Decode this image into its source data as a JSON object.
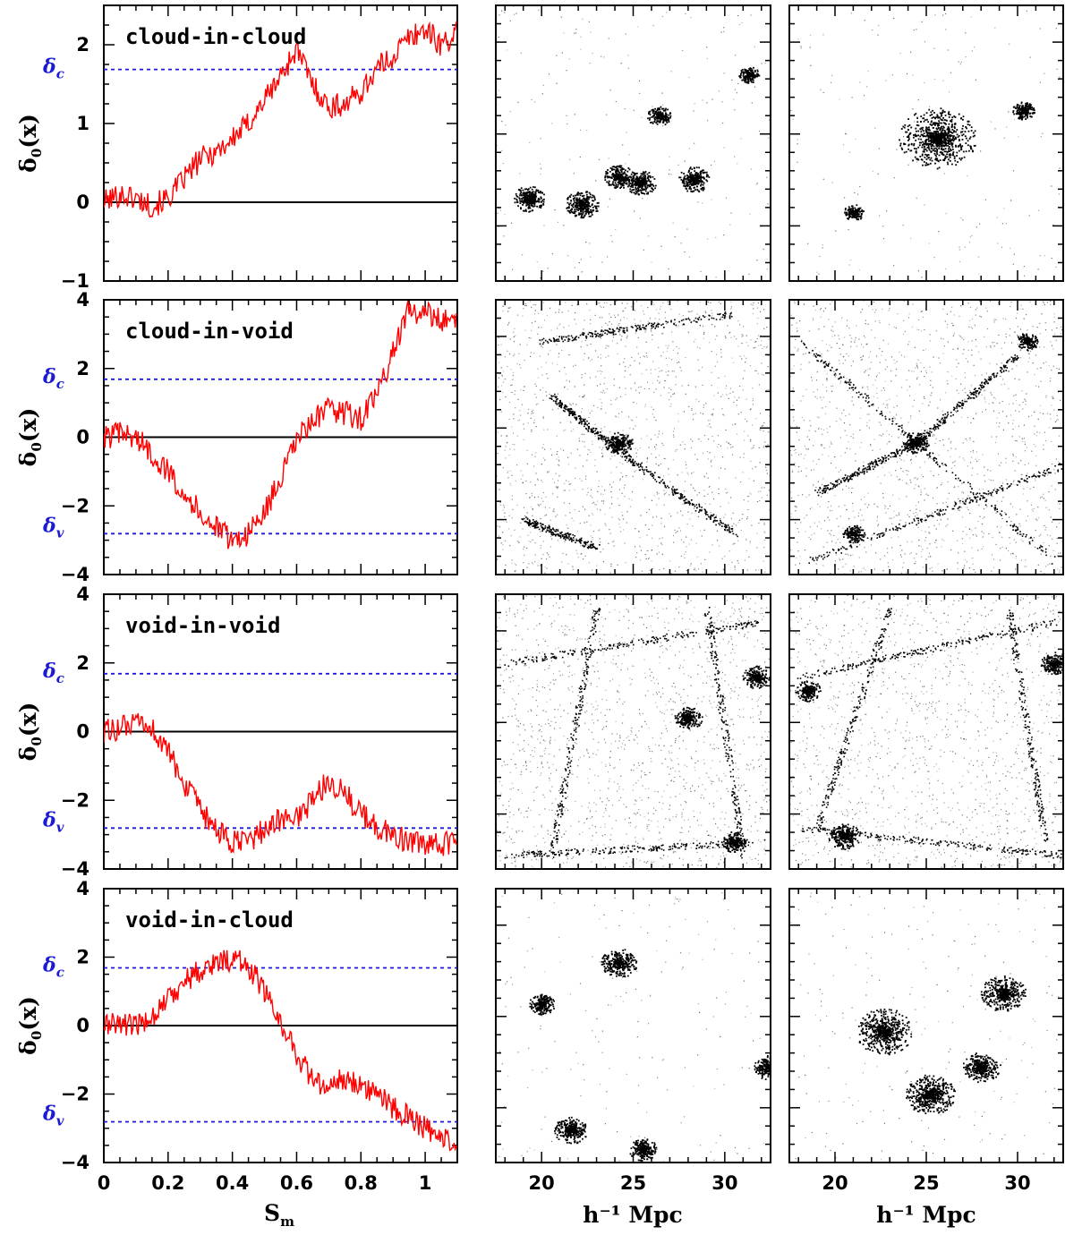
{
  "chart_data": {
    "type": "line",
    "colors": {
      "walk": "#ff0000",
      "threshold": "#1b1bd6",
      "zero": "#000000",
      "particles": "#000000"
    },
    "xlim": [
      0,
      1.1
    ],
    "xticks": [
      0,
      0.2,
      0.4,
      0.6,
      0.8,
      1
    ],
    "xtick_labels": [
      "0",
      "0.2",
      "0.4",
      "0.6",
      "0.8",
      "1"
    ],
    "xlabel": {
      "base": "S",
      "sub": "m"
    },
    "ylabel": {
      "base": "δ",
      "sub": "0",
      "tail": "(x)"
    },
    "threshold_labels": {
      "collapse": {
        "base": "δ",
        "sub": "c"
      },
      "void": {
        "base": "δ",
        "sub": "v"
      }
    },
    "thresholds": {
      "delta_c": 1.686,
      "delta_v": -2.81
    },
    "panels": [
      {
        "name": "cloud-in-cloud",
        "ylim": [
          -1,
          2.5
        ],
        "yticks": [
          -1,
          0,
          1,
          2
        ],
        "ytick_labels": [
          "−1",
          "0",
          "1",
          "2"
        ],
        "show_delta_v": false,
        "walk": {
          "s": [
            0,
            0.05,
            0.1,
            0.15,
            0.2,
            0.25,
            0.3,
            0.35,
            0.4,
            0.45,
            0.5,
            0.55,
            0.6,
            0.65,
            0.7,
            0.75,
            0.8,
            0.85,
            0.9,
            0.95,
            1.0,
            1.05,
            1.1
          ],
          "delta": [
            0.0,
            0.1,
            0.05,
            -0.05,
            0.05,
            0.3,
            0.55,
            0.65,
            0.8,
            1.0,
            1.3,
            1.6,
            1.95,
            1.5,
            1.2,
            1.25,
            1.4,
            1.7,
            1.85,
            2.1,
            2.2,
            2.0,
            2.15
          ]
        }
      },
      {
        "name": "cloud-in-void",
        "ylim": [
          -4,
          4
        ],
        "yticks": [
          -4,
          -2,
          0,
          2,
          4
        ],
        "ytick_labels": [
          "−4",
          "−2",
          "0",
          "2",
          "4"
        ],
        "show_delta_v": true,
        "walk": {
          "s": [
            0,
            0.05,
            0.1,
            0.15,
            0.2,
            0.25,
            0.3,
            0.35,
            0.4,
            0.45,
            0.5,
            0.55,
            0.6,
            0.65,
            0.7,
            0.75,
            0.8,
            0.85,
            0.9,
            0.95,
            1.0,
            1.05,
            1.1
          ],
          "delta": [
            0.0,
            0.1,
            0.0,
            -0.5,
            -1.0,
            -1.6,
            -2.2,
            -2.65,
            -3.0,
            -2.8,
            -2.2,
            -1.2,
            -0.1,
            0.5,
            0.8,
            0.7,
            0.55,
            1.2,
            2.5,
            3.7,
            3.6,
            3.4,
            3.45
          ]
        }
      },
      {
        "name": "void-in-void",
        "ylim": [
          -4,
          4
        ],
        "yticks": [
          -4,
          -2,
          0,
          2,
          4
        ],
        "ytick_labels": [
          "−4",
          "−2",
          "0",
          "2",
          "4"
        ],
        "show_delta_v": true,
        "walk": {
          "s": [
            0,
            0.05,
            0.1,
            0.15,
            0.2,
            0.25,
            0.3,
            0.35,
            0.4,
            0.45,
            0.5,
            0.55,
            0.6,
            0.65,
            0.7,
            0.75,
            0.8,
            0.85,
            0.9,
            0.95,
            1.0,
            1.05,
            1.1
          ],
          "delta": [
            0.0,
            0.1,
            0.2,
            0.1,
            -0.6,
            -1.5,
            -2.3,
            -2.9,
            -3.25,
            -3.2,
            -2.85,
            -2.55,
            -2.5,
            -2.0,
            -1.4,
            -1.8,
            -2.4,
            -2.8,
            -3.0,
            -3.2,
            -3.35,
            -3.3,
            -3.2
          ]
        }
      },
      {
        "name": "void-in-cloud",
        "ylim": [
          -4,
          4
        ],
        "yticks": [
          -4,
          -2,
          0,
          2,
          4
        ],
        "ytick_labels": [
          "−4",
          "−2",
          "0",
          "2",
          "4"
        ],
        "show_delta_v": true,
        "walk": {
          "s": [
            0,
            0.05,
            0.1,
            0.15,
            0.2,
            0.25,
            0.3,
            0.35,
            0.4,
            0.45,
            0.5,
            0.55,
            0.6,
            0.65,
            0.7,
            0.75,
            0.8,
            0.85,
            0.9,
            0.95,
            1.0,
            1.05,
            1.1
          ],
          "delta": [
            0.0,
            0.1,
            -0.05,
            0.3,
            0.8,
            1.3,
            1.6,
            1.85,
            1.95,
            1.75,
            1.0,
            0.1,
            -0.8,
            -1.6,
            -1.85,
            -1.5,
            -1.7,
            -2.0,
            -2.4,
            -2.7,
            -3.0,
            -3.4,
            -3.25
          ]
        }
      }
    ],
    "density_slices": {
      "xlim": [
        17.5,
        32.5
      ],
      "xticks": [
        20,
        25,
        30
      ],
      "xtick_labels": [
        "20",
        "25",
        "30"
      ],
      "xlabel": "h⁻¹ Mpc",
      "rows": [
        [
          {
            "clumps": [
              [
                19.3,
                0.7,
                0.45
              ],
              [
                22.2,
                0.72,
                0.5
              ],
              [
                24.2,
                0.62,
                0.4
              ],
              [
                25.4,
                0.64,
                0.45
              ],
              [
                26.4,
                0.4,
                0.25
              ],
              [
                28.3,
                0.63,
                0.45
              ],
              [
                31.3,
                0.25,
                0.15
              ]
            ],
            "filaments": [],
            "background": 0.15
          },
          {
            "clumps": [
              [
                25.6,
                0.48,
                1.6
              ],
              [
                30.3,
                0.38,
                0.2
              ],
              [
                21.0,
                0.75,
                0.15
              ]
            ],
            "filaments": [],
            "background": 0.12
          }
        ],
        [
          {
            "clumps": [
              [
                24.2,
                0.52,
                0.35
              ]
            ],
            "filaments": [
              [
                20.0,
                0.15,
                30.5,
                0.05
              ],
              [
                20.5,
                0.35,
                24.2,
                0.55
              ],
              [
                24.2,
                0.55,
                30.5,
                0.85
              ],
              [
                19.0,
                0.8,
                23.0,
                0.9
              ]
            ],
            "background": 1.0
          },
          {
            "clumps": [
              [
                24.4,
                0.52,
                0.3
              ],
              [
                21.0,
                0.85,
                0.2
              ],
              [
                30.5,
                0.15,
                0.2
              ]
            ],
            "filaments": [
              [
                18.0,
                0.15,
                32.0,
                0.95
              ],
              [
                19.0,
                0.7,
                24.4,
                0.52
              ],
              [
                24.4,
                0.52,
                30.0,
                0.2
              ],
              [
                18.5,
                0.95,
                32.5,
                0.6
              ]
            ],
            "background": 0.95
          }
        ],
        [
          {
            "clumps": [
              [
                28.0,
                0.45,
                0.35
              ],
              [
                31.7,
                0.3,
                0.35
              ],
              [
                30.5,
                0.9,
                0.3
              ]
            ],
            "filaments": [
              [
                18.0,
                0.25,
                32.0,
                0.1
              ],
              [
                18.0,
                0.95,
                32.0,
                0.9
              ],
              [
                23.0,
                0.05,
                20.5,
                0.95
              ],
              [
                29.0,
                0.05,
                31.0,
                0.95
              ]
            ],
            "background": 1.0
          },
          {
            "clumps": [
              [
                20.5,
                0.88,
                0.45
              ],
              [
                18.5,
                0.35,
                0.3
              ],
              [
                32.0,
                0.25,
                0.35
              ]
            ],
            "filaments": [
              [
                18.0,
                0.85,
                32.5,
                0.95
              ],
              [
                18.0,
                0.3,
                32.0,
                0.1
              ],
              [
                23.0,
                0.05,
                19.0,
                0.85
              ],
              [
                29.5,
                0.05,
                31.5,
                0.9
              ]
            ],
            "background": 0.95
          }
        ],
        [
          {
            "clumps": [
              [
                24.2,
                0.27,
                0.55
              ],
              [
                21.6,
                0.88,
                0.5
              ],
              [
                32.4,
                0.65,
                0.45
              ],
              [
                20.0,
                0.42,
                0.3
              ],
              [
                25.5,
                0.95,
                0.35
              ]
            ],
            "filaments": [],
            "background": 0.12
          },
          {
            "clumps": [
              [
                22.7,
                0.52,
                1.1
              ],
              [
                29.2,
                0.38,
                0.8
              ],
              [
                25.2,
                0.75,
                0.9
              ],
              [
                28.0,
                0.65,
                0.6
              ]
            ],
            "filaments": [],
            "background": 0.15
          }
        ]
      ]
    }
  }
}
